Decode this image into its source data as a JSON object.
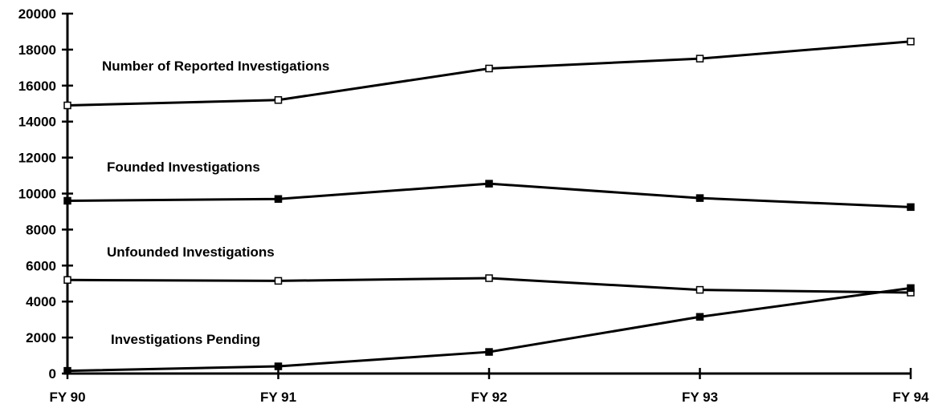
{
  "chart_data": {
    "type": "line",
    "categories": [
      "FY 90",
      "FY 91",
      "FY 92",
      "FY 93",
      "FY 94"
    ],
    "ylim": [
      0,
      20000
    ],
    "y_ticks": [
      "0",
      "2000",
      "4000",
      "6000",
      "8000",
      "10000",
      "12000",
      "14000",
      "16000",
      "18000",
      "20000"
    ],
    "grid": false,
    "series": [
      {
        "name": "Number of Reported Investigations",
        "marker": "open-square",
        "values": [
          14900,
          15200,
          16950,
          17500,
          18450
        ]
      },
      {
        "name": "Founded Investigations",
        "marker": "filled-square",
        "values": [
          9600,
          9700,
          10550,
          9750,
          9250
        ]
      },
      {
        "name": "Unfounded Investigations",
        "marker": "open-square",
        "values": [
          5200,
          5150,
          5300,
          4650,
          4500
        ]
      },
      {
        "name": "Investigations Pending",
        "marker": "filled-square",
        "values": [
          150,
          400,
          1200,
          3150,
          4750
        ]
      }
    ]
  }
}
